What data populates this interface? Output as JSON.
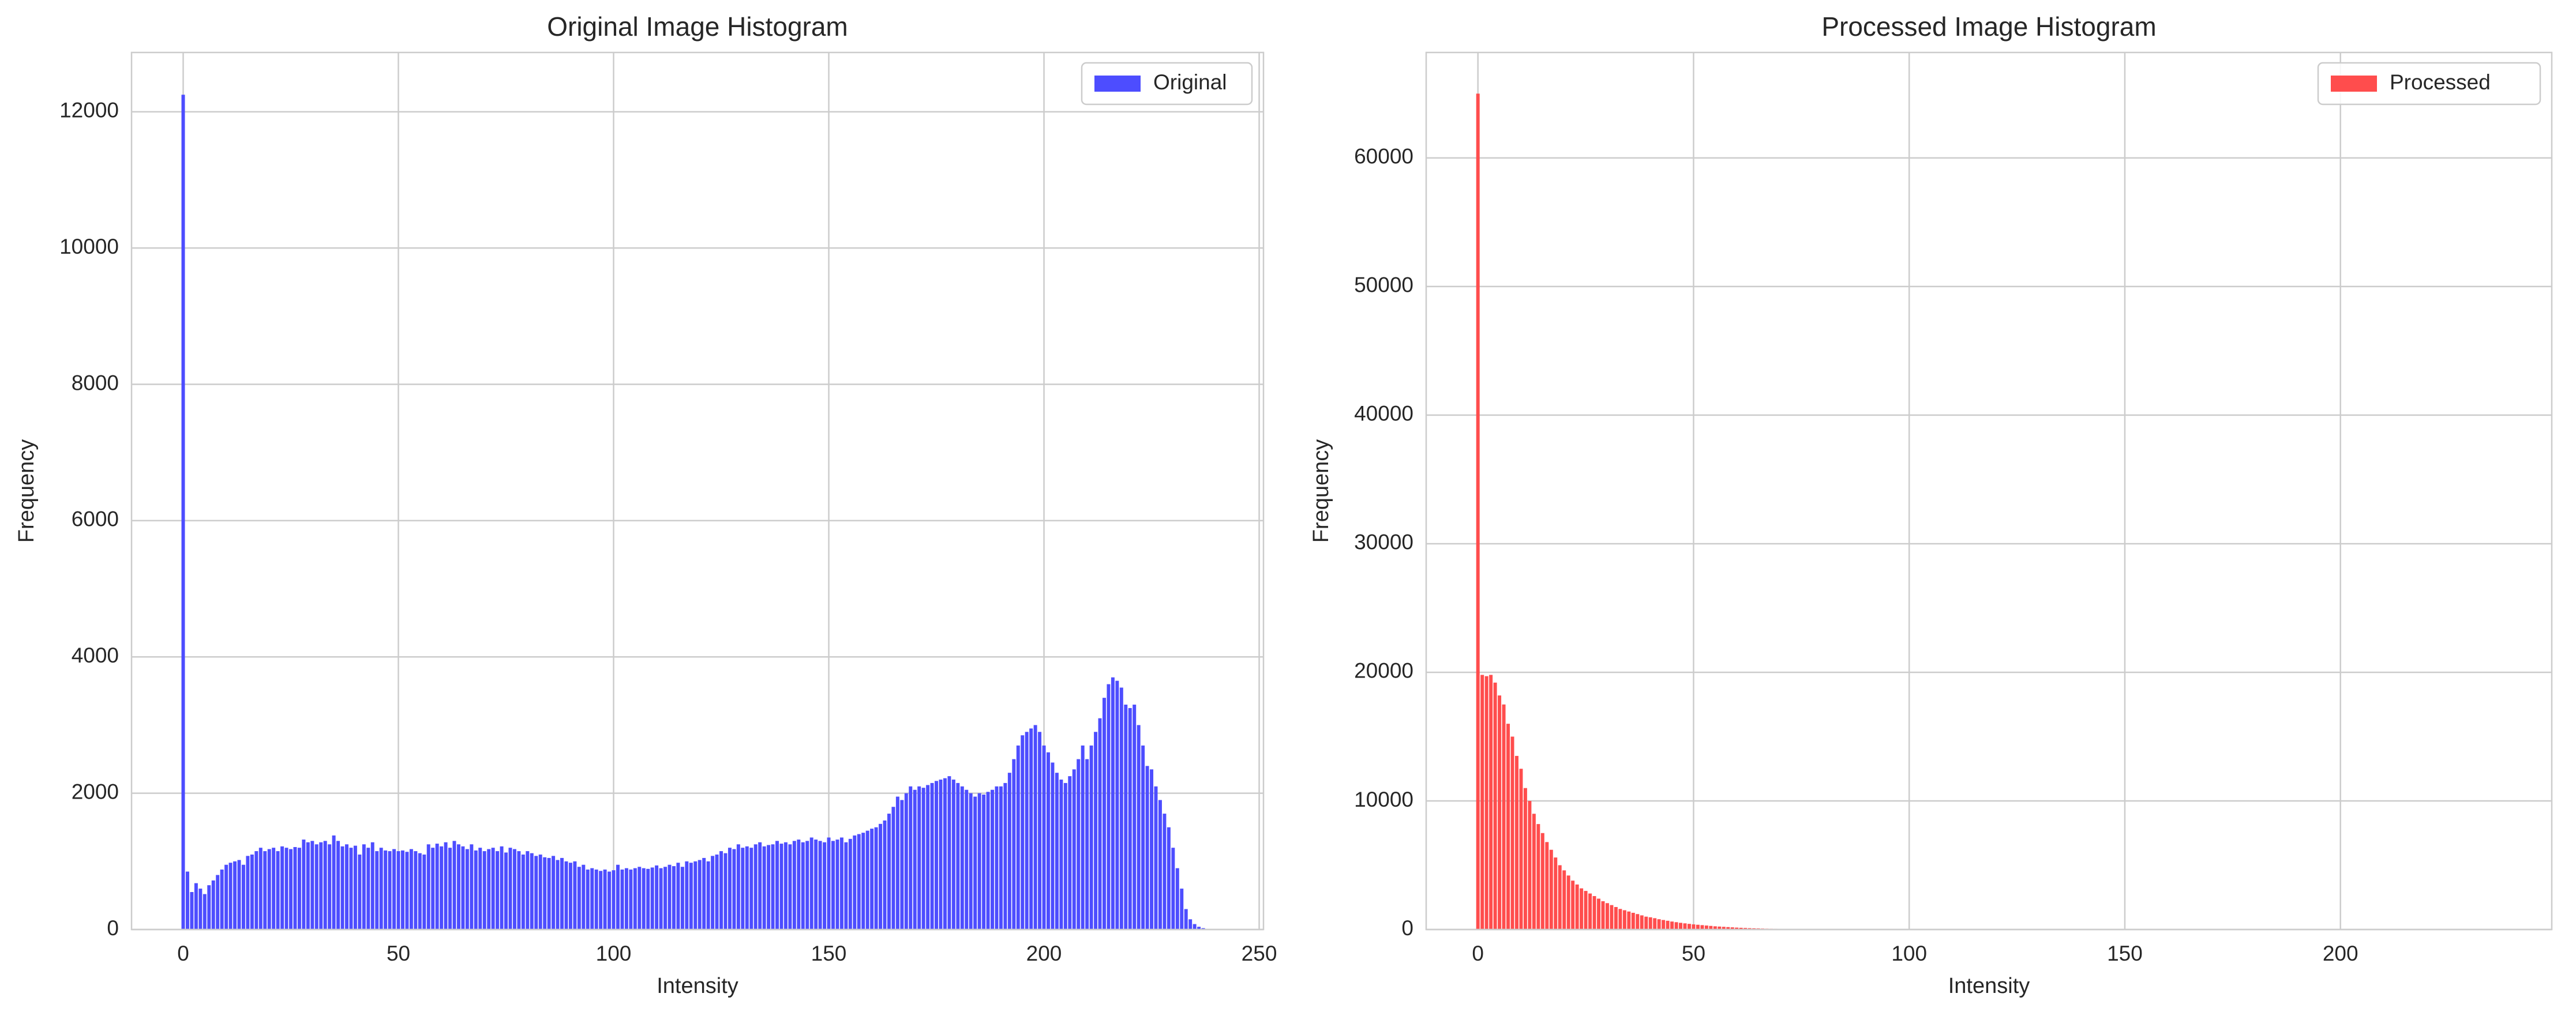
{
  "chart_data": [
    {
      "type": "bar",
      "title": "Original Image Histogram",
      "x_label": "Intensity",
      "y_label": "Frequency",
      "grid": true,
      "legend": "upper right",
      "xlim": [
        -12,
        251
      ],
      "ylim": [
        0,
        12870
      ],
      "xticks": [
        0,
        50,
        100,
        150,
        200,
        250
      ],
      "yticks": [
        0,
        2000,
        4000,
        6000,
        8000,
        10000,
        12000
      ],
      "series": [
        {
          "name": "Original",
          "color": "#4d4dff",
          "x": [
            0,
            1,
            2,
            3,
            4,
            5,
            6,
            7,
            8,
            9,
            10,
            11,
            12,
            13,
            14,
            15,
            16,
            17,
            18,
            19,
            20,
            21,
            22,
            23,
            24,
            25,
            26,
            27,
            28,
            29,
            30,
            31,
            32,
            33,
            34,
            35,
            36,
            37,
            38,
            39,
            40,
            41,
            42,
            43,
            44,
            45,
            46,
            47,
            48,
            49,
            50,
            51,
            52,
            53,
            54,
            55,
            56,
            57,
            58,
            59,
            60,
            61,
            62,
            63,
            64,
            65,
            66,
            67,
            68,
            69,
            70,
            71,
            72,
            73,
            74,
            75,
            76,
            77,
            78,
            79,
            80,
            81,
            82,
            83,
            84,
            85,
            86,
            87,
            88,
            89,
            90,
            91,
            92,
            93,
            94,
            95,
            96,
            97,
            98,
            99,
            100,
            101,
            102,
            103,
            104,
            105,
            106,
            107,
            108,
            109,
            110,
            111,
            112,
            113,
            114,
            115,
            116,
            117,
            118,
            119,
            120,
            121,
            122,
            123,
            124,
            125,
            126,
            127,
            128,
            129,
            130,
            131,
            132,
            133,
            134,
            135,
            136,
            137,
            138,
            139,
            140,
            141,
            142,
            143,
            144,
            145,
            146,
            147,
            148,
            149,
            150,
            151,
            152,
            153,
            154,
            155,
            156,
            157,
            158,
            159,
            160,
            161,
            162,
            163,
            164,
            165,
            166,
            167,
            168,
            169,
            170,
            171,
            172,
            173,
            174,
            175,
            176,
            177,
            178,
            179,
            180,
            181,
            182,
            183,
            184,
            185,
            186,
            187,
            188,
            189,
            190,
            191,
            192,
            193,
            194,
            195,
            196,
            197,
            198,
            199,
            200,
            201,
            202,
            203,
            204,
            205,
            206,
            207,
            208,
            209,
            210,
            211,
            212,
            213,
            214,
            215,
            216,
            217,
            218,
            219,
            220,
            221,
            222,
            223,
            224,
            225,
            226,
            227,
            228,
            229,
            230,
            231,
            232,
            233,
            234,
            235,
            236,
            237
          ],
          "values": [
            12250,
            850,
            550,
            680,
            600,
            520,
            650,
            720,
            800,
            880,
            950,
            980,
            1000,
            1020,
            950,
            1080,
            1100,
            1150,
            1200,
            1150,
            1180,
            1200,
            1150,
            1220,
            1200,
            1180,
            1210,
            1200,
            1320,
            1280,
            1300,
            1250,
            1280,
            1300,
            1250,
            1380,
            1300,
            1220,
            1250,
            1200,
            1230,
            1100,
            1250,
            1200,
            1280,
            1150,
            1200,
            1160,
            1150,
            1180,
            1150,
            1160,
            1140,
            1180,
            1150,
            1120,
            1100,
            1250,
            1200,
            1260,
            1220,
            1280,
            1200,
            1300,
            1250,
            1220,
            1180,
            1250,
            1160,
            1200,
            1150,
            1180,
            1200,
            1150,
            1220,
            1130,
            1200,
            1180,
            1150,
            1100,
            1150,
            1120,
            1080,
            1100,
            1060,
            1050,
            1080,
            1020,
            1050,
            1000,
            980,
            1000,
            920,
            950,
            880,
            900,
            880,
            860,
            880,
            850,
            870,
            950,
            880,
            900,
            880,
            900,
            920,
            900,
            890,
            910,
            940,
            900,
            920,
            950,
            930,
            980,
            920,
            1000,
            980,
            1000,
            1020,
            1050,
            1000,
            1080,
            1100,
            1150,
            1120,
            1200,
            1180,
            1250,
            1200,
            1220,
            1200,
            1250,
            1280,
            1220,
            1240,
            1250,
            1300,
            1260,
            1280,
            1250,
            1300,
            1320,
            1280,
            1300,
            1350,
            1320,
            1300,
            1280,
            1350,
            1300,
            1320,
            1350,
            1280,
            1330,
            1380,
            1400,
            1420,
            1450,
            1480,
            1500,
            1550,
            1600,
            1700,
            1800,
            1950,
            1900,
            2000,
            2100,
            2050,
            2100,
            2080,
            2120,
            2150,
            2180,
            2200,
            2220,
            2250,
            2200,
            2150,
            2100,
            2050,
            2000,
            1950,
            2000,
            1980,
            2020,
            2050,
            2100,
            2100,
            2150,
            2300,
            2500,
            2700,
            2850,
            2900,
            2950,
            3000,
            2900,
            2700,
            2600,
            2450,
            2300,
            2200,
            2150,
            2250,
            2350,
            2500,
            2700,
            2500,
            2700,
            2900,
            3100,
            3400,
            3600,
            3700,
            3650,
            3550,
            3300,
            3250,
            3300,
            3000,
            2700,
            2400,
            2350,
            2100,
            1900,
            1700,
            1500,
            1200,
            900,
            600,
            300,
            150,
            80,
            40,
            20
          ]
        }
      ]
    },
    {
      "type": "bar",
      "title": "Processed Image Histogram",
      "x_label": "Intensity",
      "y_label": "Frequency",
      "grid": true,
      "legend": "upper right",
      "xlim": [
        -12,
        249
      ],
      "ylim": [
        0,
        68200
      ],
      "xticks": [
        0,
        50,
        100,
        150,
        200
      ],
      "yticks": [
        0,
        10000,
        20000,
        30000,
        40000,
        50000,
        60000
      ],
      "series": [
        {
          "name": "Processed",
          "color": "#ff4d4d",
          "x": [
            0,
            1,
            2,
            3,
            4,
            5,
            6,
            7,
            8,
            9,
            10,
            11,
            12,
            13,
            14,
            15,
            16,
            17,
            18,
            19,
            20,
            21,
            22,
            23,
            24,
            25,
            26,
            27,
            28,
            29,
            30,
            31,
            32,
            33,
            34,
            35,
            36,
            37,
            38,
            39,
            40,
            41,
            42,
            43,
            44,
            45,
            46,
            47,
            48,
            49,
            50,
            51,
            52,
            53,
            54,
            55,
            56,
            57,
            58,
            59,
            60,
            61,
            62,
            63,
            64,
            65,
            66,
            67,
            68,
            69,
            70,
            71,
            72,
            73,
            74,
            75,
            76,
            77,
            78,
            79
          ],
          "values": [
            65000,
            19800,
            19700,
            19800,
            19200,
            18200,
            17500,
            16000,
            15000,
            13500,
            12500,
            11000,
            10000,
            9000,
            8200,
            7500,
            6800,
            6200,
            5600,
            5000,
            4600,
            4200,
            3800,
            3500,
            3200,
            3000,
            2800,
            2600,
            2400,
            2200,
            2050,
            1900,
            1750,
            1600,
            1500,
            1400,
            1300,
            1200,
            1100,
            1000,
            950,
            880,
            800,
            740,
            680,
            620,
            570,
            520,
            480,
            440,
            400,
            370,
            340,
            310,
            280,
            250,
            230,
            210,
            190,
            170,
            150,
            135,
            120,
            105,
            95,
            85,
            75,
            65,
            55,
            48,
            40,
            34,
            28,
            22,
            18,
            14,
            10,
            7,
            5,
            3
          ]
        }
      ]
    }
  ]
}
